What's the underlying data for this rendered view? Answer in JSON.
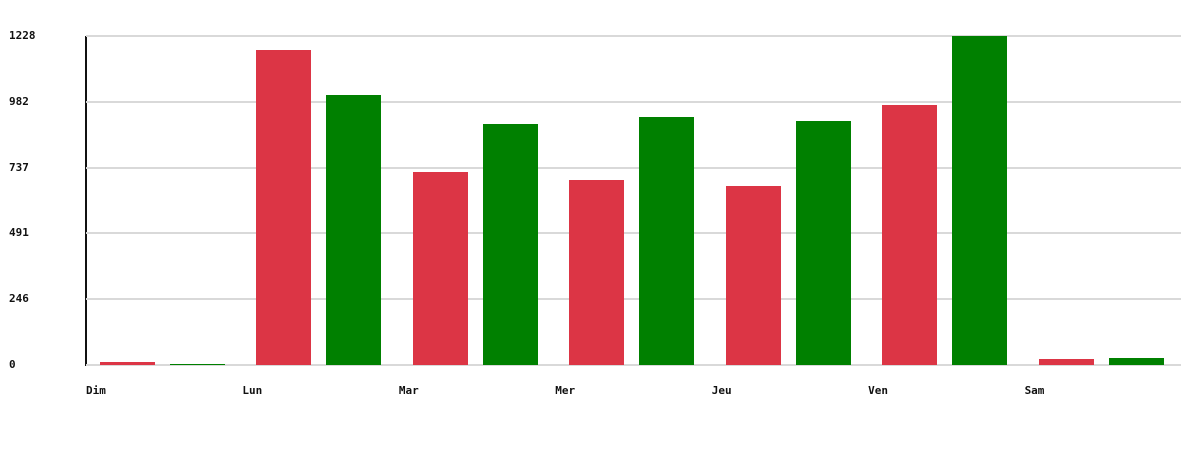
{
  "chart_data": {
    "type": "bar",
    "title": "",
    "xlabel": "",
    "ylabel": "",
    "categories": [
      "Dim",
      "Lun",
      "Mar",
      "Mer",
      "Jeu",
      "Ven",
      "Sam"
    ],
    "series": [
      {
        "name": "red",
        "color": "#dc3545",
        "values": [
          12,
          1176,
          722,
          692,
          668,
          970,
          23
        ]
      },
      {
        "name": "green",
        "color": "#008000",
        "values": [
          5,
          1008,
          900,
          925,
          910,
          1228,
          27
        ]
      }
    ],
    "y_ticks": [
      "1228",
      "982",
      "737",
      "491",
      "246",
      "0"
    ],
    "y_tick_values": [
      1228,
      982,
      737,
      491,
      246,
      0
    ],
    "ylim": [
      0,
      1228
    ],
    "grid": true,
    "legend_position": "none"
  },
  "colors": {
    "background": "#ffffff",
    "grid_line": "#d9d9d9",
    "axis_line": "#111111",
    "label_text": "#111111"
  }
}
